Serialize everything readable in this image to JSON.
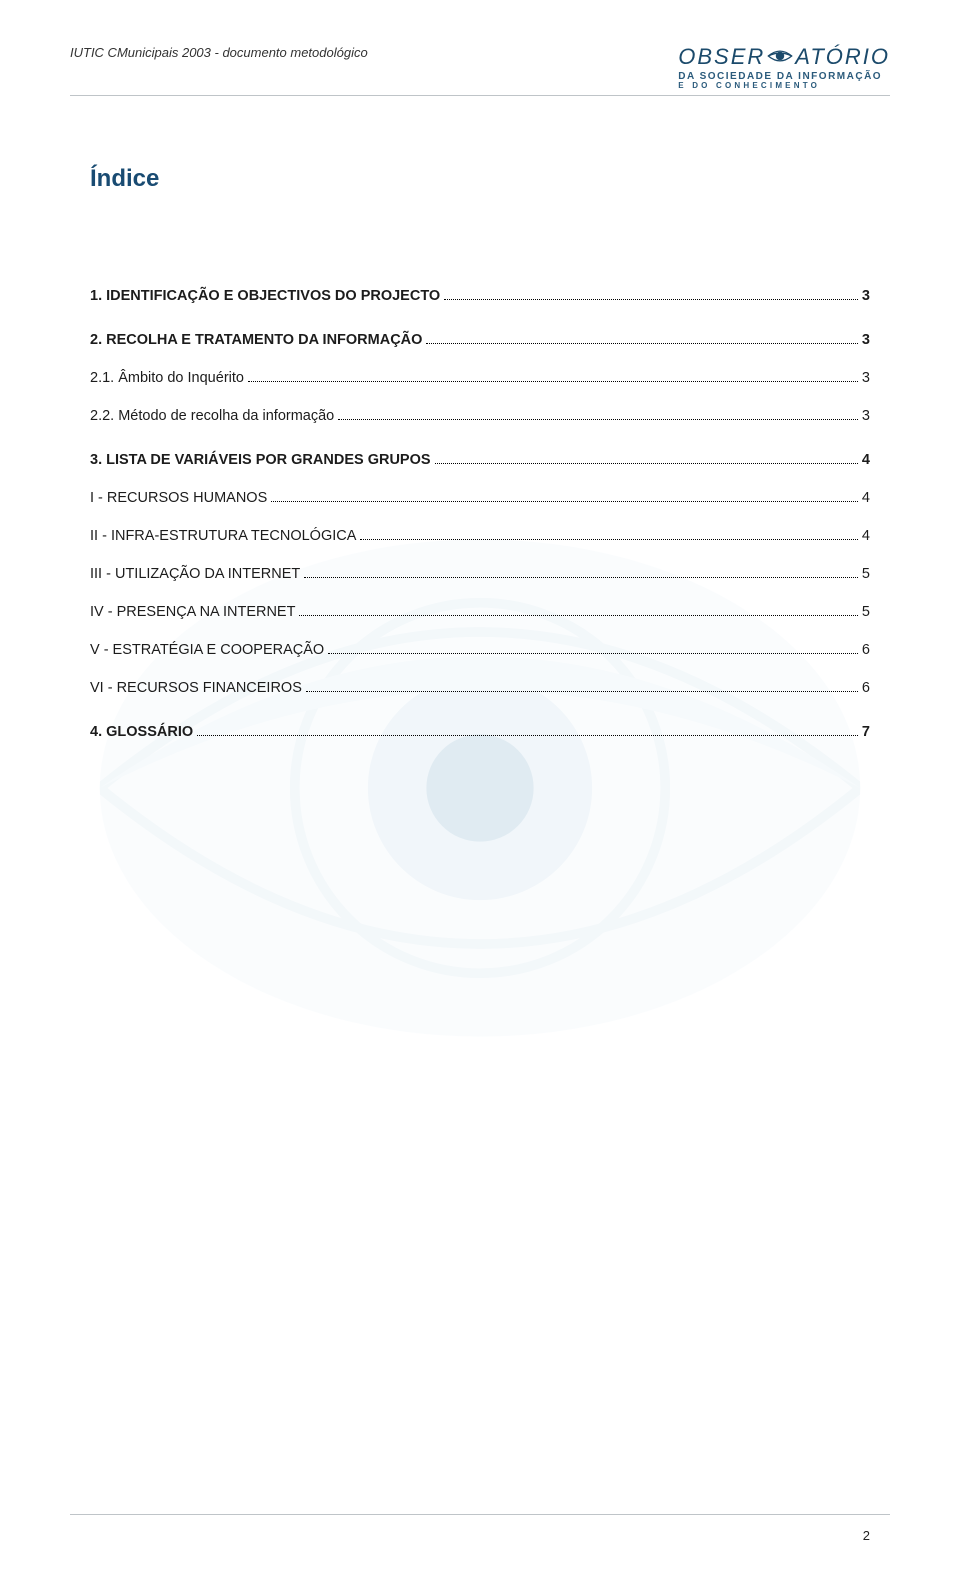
{
  "header": {
    "left_text": "IUTIC CMunicipais 2003 - documento metodológico",
    "logo": {
      "word_left": "OBSER",
      "word_right": "ATÓRIO",
      "line2": "DA SOCIEDADE DA INFORMAÇÃO",
      "line3": "E  DO  CONHECIMENTO"
    }
  },
  "title": "Índice",
  "toc": [
    {
      "level": "h1",
      "bold": true,
      "label": "1. IDENTIFICAÇÃO E OBJECTIVOS DO PROJECTO",
      "page": "3"
    },
    {
      "level": "h1",
      "bold": true,
      "label": "2. RECOLHA E TRATAMENTO DA INFORMAÇÃO",
      "page": "3"
    },
    {
      "level": "h2",
      "bold": false,
      "label": "2.1. Âmbito do Inquérito",
      "page": "3"
    },
    {
      "level": "h2",
      "bold": false,
      "label": "2.2. Método de recolha da informação",
      "page": "3"
    },
    {
      "level": "h1",
      "bold": true,
      "label": "3. LISTA DE VARIÁVEIS POR GRANDES GRUPOS",
      "page": "4"
    },
    {
      "level": "sub",
      "bold": false,
      "label": "I - RECURSOS HUMANOS",
      "page": "4"
    },
    {
      "level": "sub",
      "bold": false,
      "label": "II - INFRA-ESTRUTURA TECNOLÓGICA",
      "page": "4"
    },
    {
      "level": "sub",
      "bold": false,
      "label": "III - UTILIZAÇÃO DA INTERNET",
      "page": "5"
    },
    {
      "level": "sub",
      "bold": false,
      "label": "IV - PRESENÇA NA INTERNET",
      "page": "5"
    },
    {
      "level": "sub",
      "bold": false,
      "label": "V - ESTRATÉGIA E COOPERAÇÃO",
      "page": "6"
    },
    {
      "level": "sub",
      "bold": false,
      "label": "VI -  RECURSOS FINANCEIROS",
      "page": "6"
    },
    {
      "level": "h1",
      "bold": true,
      "label": "4. GLOSSÁRIO",
      "page": "7"
    }
  ],
  "page_number": "2",
  "colors": {
    "heading": "#194b72",
    "logo_text": "#1b4a6b",
    "rule": "#bfc4c8",
    "wm_outer": "#eaf3fa",
    "wm_ring": "#c7deeb",
    "wm_iris": "#6a9fc2"
  }
}
